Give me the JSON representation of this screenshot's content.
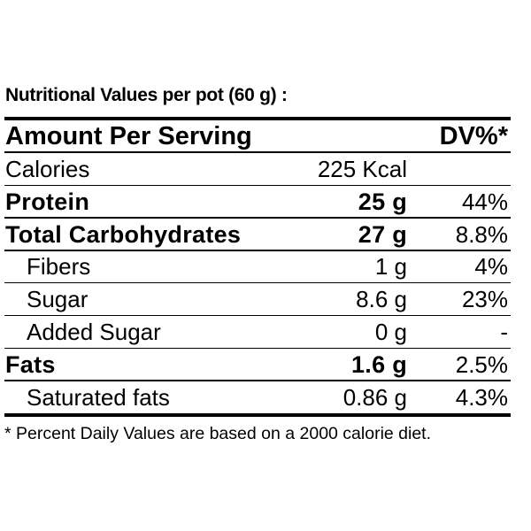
{
  "title": "Nutritional Values per pot (60 g) :",
  "header": {
    "label": "Amount Per Serving",
    "dv": "DV%*"
  },
  "rows": [
    {
      "label": "Calories",
      "amount": "225 Kcal"
    },
    {
      "label": "Protein",
      "amount": "25 g",
      "dv": "44%"
    },
    {
      "label": "Total Carbohydrates",
      "amount": "27 g",
      "dv": "8.8%"
    },
    {
      "label": "Fibers",
      "amount": "1 g",
      "dv": "4%"
    },
    {
      "label": "Sugar",
      "amount": "8.6 g",
      "dv": "23%"
    },
    {
      "label": "Added Sugar",
      "amount": "0 g",
      "dv": "-"
    },
    {
      "label": "Fats",
      "amount": "1.6 g",
      "dv": "2.5%"
    },
    {
      "label": "Saturated fats",
      "amount": "0.86 g",
      "dv": "4.3%"
    }
  ],
  "footnote": "* Percent Daily Values are based on a 2000 calorie diet."
}
